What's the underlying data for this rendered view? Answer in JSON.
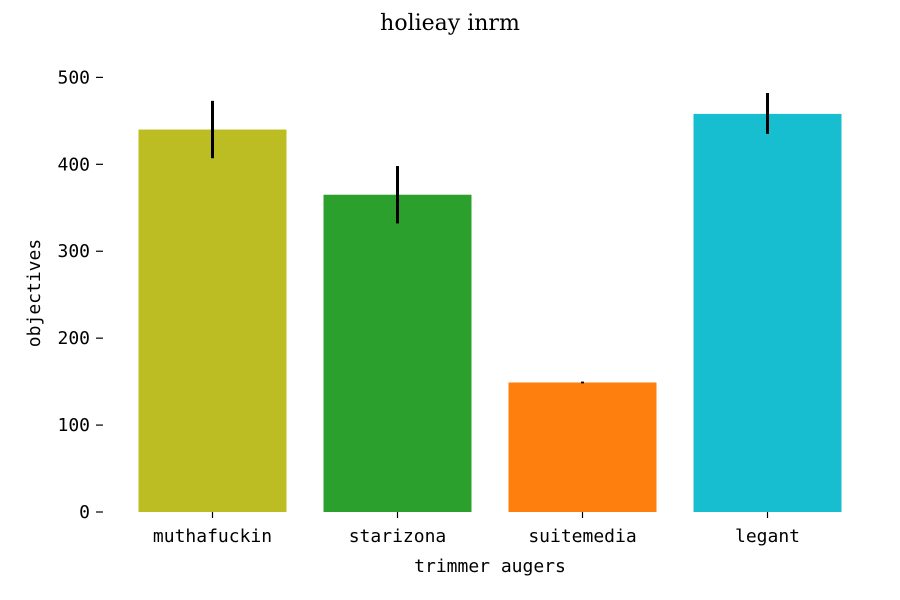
{
  "chart_data": {
    "type": "bar",
    "title": "holieay inrm",
    "xlabel": "trimmer augers",
    "ylabel": "objectives",
    "categories": [
      "muthafuckin",
      "starizona",
      "suitemedia",
      "legant"
    ],
    "values": [
      440,
      365,
      149,
      458
    ],
    "errors": [
      [
        407,
        473
      ],
      [
        332,
        398
      ],
      [
        148,
        150
      ],
      [
        435,
        482
      ]
    ],
    "colors": [
      "#bcbd22",
      "#2ca02c",
      "#ff7f0e",
      "#17becf"
    ],
    "ylim": [
      0,
      520
    ],
    "yticks": [
      0,
      100,
      200,
      300,
      400,
      500
    ],
    "grid": false,
    "legend": "none"
  }
}
